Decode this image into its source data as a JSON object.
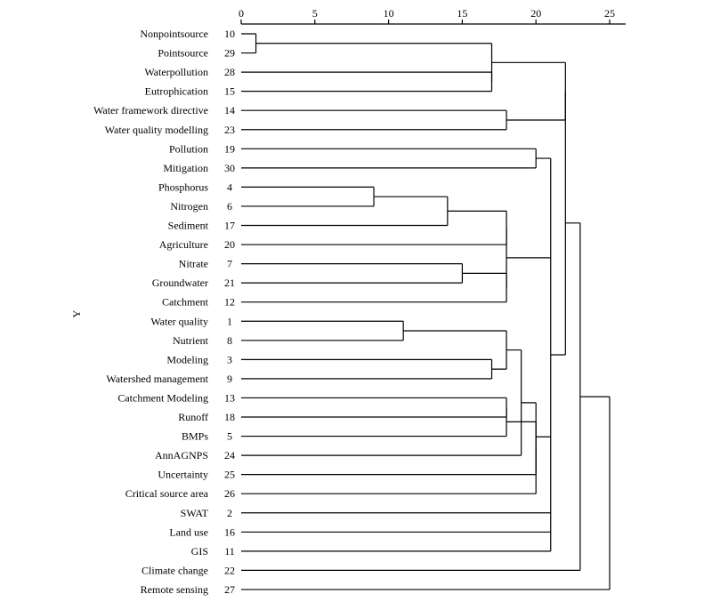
{
  "chart_data": {
    "type": "dendrogram",
    "title": "",
    "ylabel": "Y",
    "xlabel": "",
    "xlim": [
      0,
      25
    ],
    "xticks": [
      0,
      5,
      10,
      15,
      20,
      25
    ],
    "leaves": [
      {
        "label": "Nonpointsource",
        "id": 10
      },
      {
        "label": "Pointsource",
        "id": 29
      },
      {
        "label": "Waterpollution",
        "id": 28
      },
      {
        "label": "Eutrophication",
        "id": 15
      },
      {
        "label": "Water framework directive",
        "id": 14
      },
      {
        "label": "Water quality modelling",
        "id": 23
      },
      {
        "label": "Pollution",
        "id": 19
      },
      {
        "label": "Mitigation",
        "id": 30
      },
      {
        "label": "Phosphorus",
        "id": 4
      },
      {
        "label": "Nitrogen",
        "id": 6
      },
      {
        "label": "Sediment",
        "id": 17
      },
      {
        "label": "Agriculture",
        "id": 20
      },
      {
        "label": "Nitrate",
        "id": 7
      },
      {
        "label": "Groundwater",
        "id": 21
      },
      {
        "label": "Catchment",
        "id": 12
      },
      {
        "label": "Water quality",
        "id": 1
      },
      {
        "label": "Nutrient",
        "id": 8
      },
      {
        "label": "Modeling",
        "id": 3
      },
      {
        "label": "Watershed management",
        "id": 9
      },
      {
        "label": "Catchment Modeling",
        "id": 13
      },
      {
        "label": "Runoff",
        "id": 18
      },
      {
        "label": "BMPs",
        "id": 5
      },
      {
        "label": "AnnAGNPS",
        "id": 24
      },
      {
        "label": "Uncertainty",
        "id": 25
      },
      {
        "label": "Critical source area",
        "id": 26
      },
      {
        "label": "SWAT",
        "id": 2
      },
      {
        "label": "Land use",
        "id": 16
      },
      {
        "label": "GIS",
        "id": 11
      },
      {
        "label": "Climate change",
        "id": 22
      },
      {
        "label": "Remote sensing",
        "id": 27
      }
    ],
    "merges": [
      {
        "id": "A",
        "children": [
          0,
          1
        ],
        "height": 1
      },
      {
        "id": "B",
        "children": [
          2,
          3
        ],
        "height": 17
      },
      {
        "id": "C",
        "children": [
          "A",
          "B"
        ],
        "height": 17
      },
      {
        "id": "D",
        "children": [
          4,
          5
        ],
        "height": 18
      },
      {
        "id": "E",
        "children": [
          "C",
          "D"
        ],
        "height": 22
      },
      {
        "id": "F",
        "children": [
          8,
          9
        ],
        "height": 9
      },
      {
        "id": "G",
        "children": [
          "F",
          10
        ],
        "height": 14
      },
      {
        "id": "H",
        "children": [
          "G",
          11
        ],
        "height": 18
      },
      {
        "id": "I",
        "children": [
          12,
          13
        ],
        "height": 15
      },
      {
        "id": "J",
        "children": [
          "I",
          14
        ],
        "height": 18
      },
      {
        "id": "K",
        "children": [
          "H",
          "J"
        ],
        "height": 18
      },
      {
        "id": "L",
        "children": [
          15,
          16
        ],
        "height": 11
      },
      {
        "id": "M",
        "children": [
          17,
          18
        ],
        "height": 17
      },
      {
        "id": "N",
        "children": [
          "L",
          "M"
        ],
        "height": 18
      },
      {
        "id": "O",
        "children": [
          19,
          20
        ],
        "height": 18
      },
      {
        "id": "P",
        "children": [
          "O",
          21
        ],
        "height": 18
      },
      {
        "id": "Q",
        "children": [
          "N",
          22
        ],
        "height": 19
      },
      {
        "id": "R",
        "children": [
          "P",
          23
        ],
        "height": 20
      },
      {
        "id": "S",
        "children": [
          "R",
          24
        ],
        "height": 20
      },
      {
        "id": "T",
        "children": [
          "Q",
          "S"
        ],
        "height": 20
      },
      {
        "id": "U",
        "children": [
          6,
          7
        ],
        "height": 20
      },
      {
        "id": "V",
        "children": [
          "U",
          "K",
          "T",
          25,
          26,
          27
        ],
        "height": 21
      },
      {
        "id": "W",
        "children": [
          "E",
          "V"
        ],
        "height": 22
      },
      {
        "id": "X",
        "children": [
          "W",
          28
        ],
        "height": 23
      },
      {
        "id": "Y",
        "children": [
          "X",
          29
        ],
        "height": 25
      }
    ]
  }
}
